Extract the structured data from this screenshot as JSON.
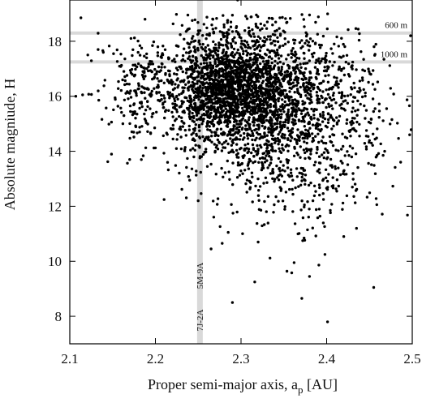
{
  "chart_data": {
    "type": "scatter",
    "xlabel": "Proper semi-major axis, a",
    "xlabel_sub": "p",
    "xlabel_unit": " [AU]",
    "ylabel": "Absolute magniude, H",
    "xlim": [
      2.1,
      2.5
    ],
    "ylim": [
      7.0,
      19.5
    ],
    "xticks": [
      "2.1",
      "2.2",
      "2.3",
      "2.4",
      "2.5"
    ],
    "yticks": [
      "8",
      "10",
      "12",
      "14",
      "16",
      "18"
    ],
    "grid": false,
    "legend": "none",
    "marker_color": "#000000",
    "reference_line_color": "#d9d9d9",
    "horizontal_lines": [
      {
        "y": 18.3,
        "label": "600 m"
      },
      {
        "y": 17.25,
        "label": "1000 m"
      }
    ],
    "vertical_line": {
      "x": 2.252,
      "labels": [
        "7J-2A",
        "5M-9A"
      ]
    },
    "scatter_regions": [
      {
        "x_center": 2.315,
        "x_sd": 0.055,
        "y_center": 15.9,
        "y_sd": 1.25,
        "count": 2300
      },
      {
        "x_center": 2.28,
        "x_sd": 0.025,
        "y_center": 16.6,
        "y_sd": 0.8,
        "count": 700
      },
      {
        "x_center": 2.19,
        "x_sd": 0.028,
        "y_center": 16.5,
        "y_sd": 0.9,
        "count": 170
      },
      {
        "x_center": 2.36,
        "x_sd": 0.04,
        "y_center": 12.9,
        "y_sd": 1.1,
        "count": 220
      },
      {
        "x_center": 2.43,
        "x_sd": 0.03,
        "y_center": 15.2,
        "y_sd": 1.4,
        "count": 150
      }
    ],
    "points": [
      {
        "x": 2.113,
        "y": 18.85
      },
      {
        "x": 2.107,
        "y": 16.0
      },
      {
        "x": 2.121,
        "y": 17.5
      },
      {
        "x": 2.115,
        "y": 16.05
      },
      {
        "x": 2.17,
        "y": 13.7
      },
      {
        "x": 2.162,
        "y": 15.0
      },
      {
        "x": 2.265,
        "y": 10.45
      },
      {
        "x": 2.285,
        "y": 11.05
      },
      {
        "x": 2.29,
        "y": 8.5
      },
      {
        "x": 2.316,
        "y": 9.25
      },
      {
        "x": 2.32,
        "y": 10.7
      },
      {
        "x": 2.362,
        "y": 9.95
      },
      {
        "x": 2.371,
        "y": 8.65
      },
      {
        "x": 2.38,
        "y": 9.45
      },
      {
        "x": 2.398,
        "y": 10.25
      },
      {
        "x": 2.401,
        "y": 7.8
      },
      {
        "x": 2.455,
        "y": 9.05
      },
      {
        "x": 2.372,
        "y": 10.75
      },
      {
        "x": 2.497,
        "y": 14.6
      },
      {
        "x": 2.498,
        "y": 18.2
      },
      {
        "x": 2.296,
        "y": 19.5
      },
      {
        "x": 2.29,
        "y": 18.95
      },
      {
        "x": 2.42,
        "y": 10.9
      },
      {
        "x": 2.466,
        "y": 13.85
      },
      {
        "x": 2.47,
        "y": 15.55
      },
      {
        "x": 2.25,
        "y": 12.2
      },
      {
        "x": 2.24,
        "y": 12.95
      }
    ]
  }
}
